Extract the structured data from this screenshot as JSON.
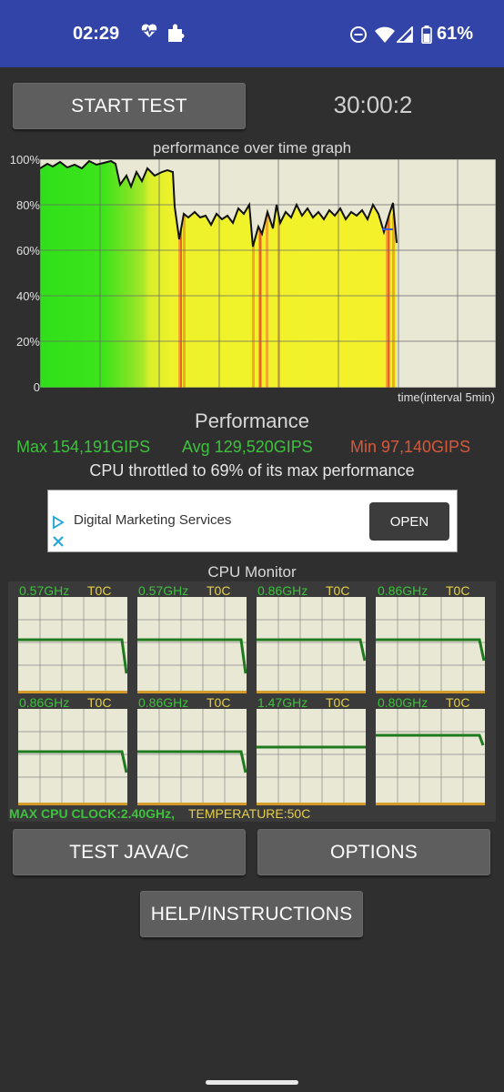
{
  "status_bar": {
    "time": "02:29",
    "battery_text": "61%",
    "icons": [
      "heart-pulse-icon",
      "puzzle-icon",
      "do-not-disturb-icon",
      "wifi-icon",
      "signal-icon",
      "battery-icon"
    ],
    "background": "#3344a8"
  },
  "controls": {
    "start_label": "START TEST",
    "timer": "30:00:2",
    "java_label": "TEST JAVA/C",
    "options_label": "OPTIONS",
    "help_label": "HELP/INSTRUCTIONS"
  },
  "graph": {
    "title": "performance over time graph",
    "y_ticks": [
      "100%",
      "80%",
      "60%",
      "40%",
      "20%",
      "0"
    ],
    "interval_label": "time(interval 5min)"
  },
  "performance": {
    "heading": "Performance",
    "max": "Max 154,191GIPS",
    "avg": "Avg 129,520GIPS",
    "min": "Min 97,140GIPS",
    "throttle_text": "CPU throttled to 69% of its max performance"
  },
  "ad": {
    "text": "Digital Marketing Services",
    "button": "OPEN"
  },
  "cpu_monitor": {
    "title": "CPU Monitor",
    "cores": [
      {
        "freq": "0.57GHz",
        "temp": "T0C"
      },
      {
        "freq": "0.57GHz",
        "temp": "T0C"
      },
      {
        "freq": "0.86GHz",
        "temp": "T0C"
      },
      {
        "freq": "0.86GHz",
        "temp": "T0C"
      },
      {
        "freq": "0.86GHz",
        "temp": "T0C"
      },
      {
        "freq": "0.86GHz",
        "temp": "T0C"
      },
      {
        "freq": "1.47GHz",
        "temp": "T0C"
      },
      {
        "freq": "0.80GHz",
        "temp": "T0C"
      }
    ],
    "max_clock": "MAX CPU CLOCK:2.40GHz,",
    "temperature": "TEMPERATURE:50C"
  },
  "colors": {
    "green": "#3ec23e",
    "yellow": "#e5d04a",
    "red": "#d9573a",
    "graph_bg": "#e9e8d4"
  }
}
